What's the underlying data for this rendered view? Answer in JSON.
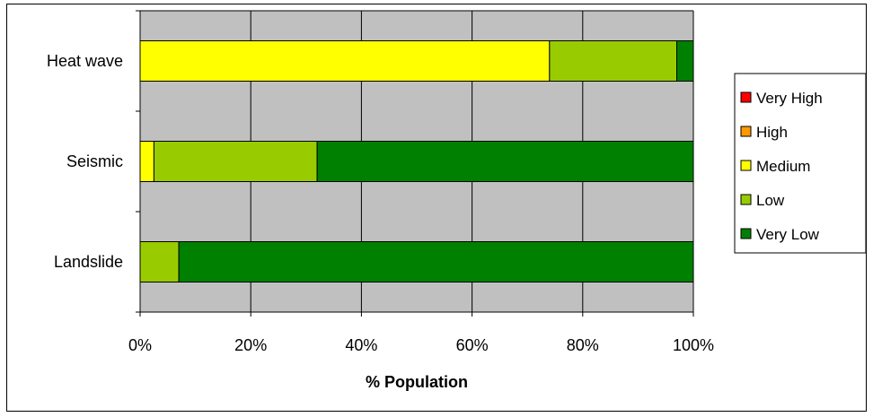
{
  "chart_data": {
    "type": "bar",
    "orientation": "horizontal",
    "stacked": "percent",
    "categories": [
      "Heat wave",
      "Seismic",
      "Landslide"
    ],
    "series": [
      {
        "name": "Very High",
        "color": "#ff0000",
        "values": [
          0,
          0,
          0
        ]
      },
      {
        "name": "High",
        "color": "#ff9900",
        "values": [
          0,
          0,
          0
        ]
      },
      {
        "name": "Medium",
        "color": "#ffff00",
        "values": [
          74,
          2.5,
          0
        ]
      },
      {
        "name": "Low",
        "color": "#99cc00",
        "values": [
          23,
          29.5,
          7
        ]
      },
      {
        "name": "Very Low",
        "color": "#008000",
        "values": [
          3,
          68,
          93
        ]
      }
    ],
    "x_ticks": [
      "0%",
      "20%",
      "40%",
      "60%",
      "80%",
      "100%"
    ],
    "xlim": [
      0,
      100
    ],
    "xlabel": "% Population",
    "grid": true,
    "plot_background": "#c0c0c0",
    "legend": "right"
  }
}
